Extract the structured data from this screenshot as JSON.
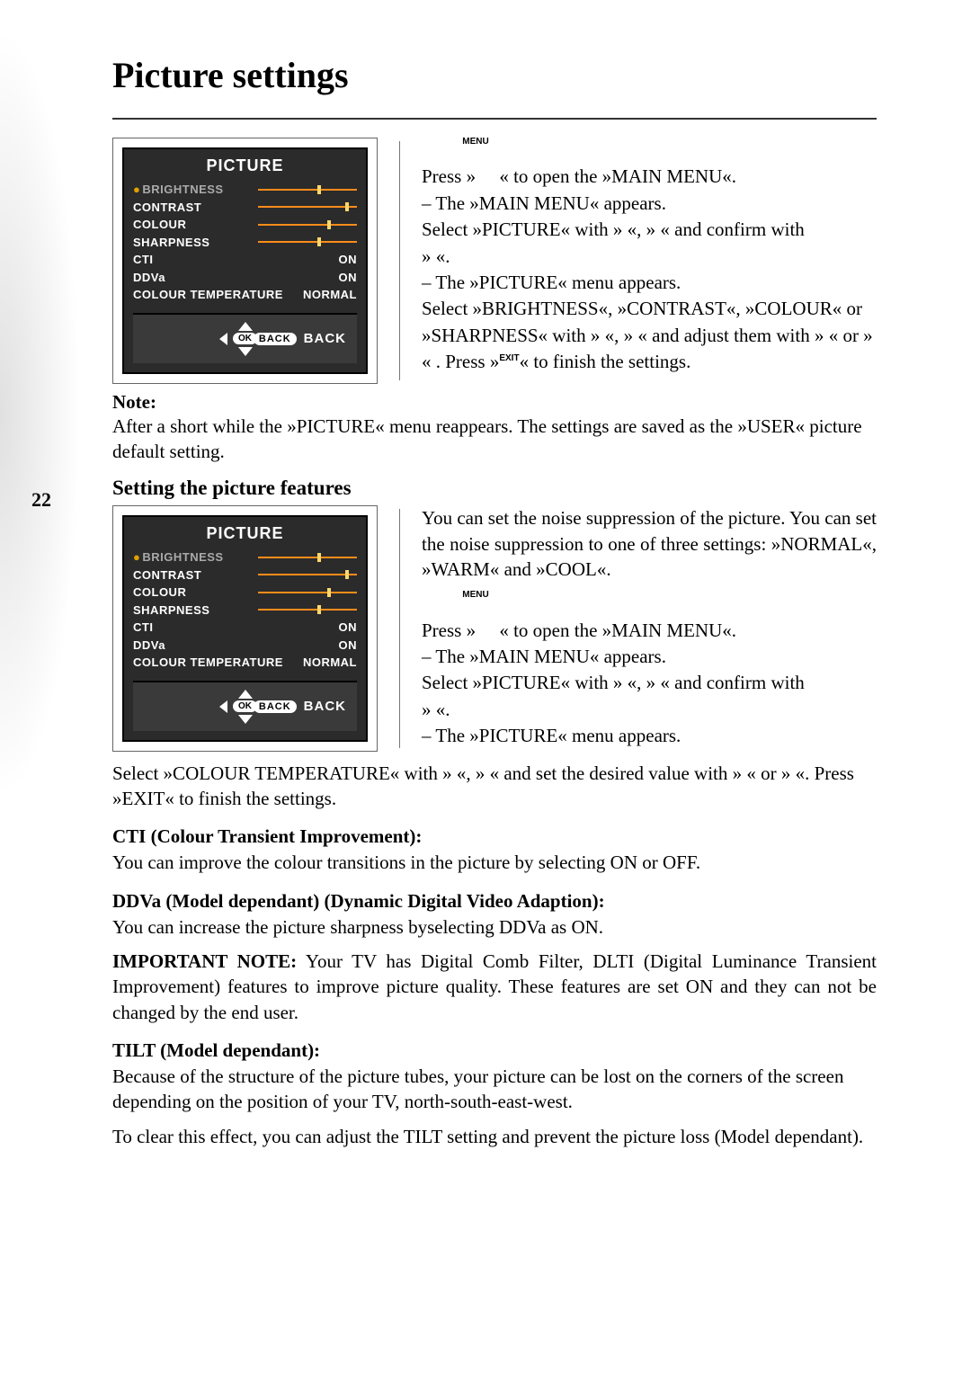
{
  "page": {
    "number": "22",
    "title": "Picture settings"
  },
  "osd": {
    "title": "PICTURE",
    "items": [
      {
        "label": "BRIGHTNESS",
        "type": "slider",
        "knob": 60,
        "highlight": true
      },
      {
        "label": "CONTRAST",
        "type": "slider",
        "knob": 88
      },
      {
        "label": "COLOUR",
        "type": "slider",
        "knob": 70
      },
      {
        "label": "SHARPNESS",
        "type": "slider",
        "knob": 60
      },
      {
        "label": "CTI",
        "type": "value",
        "value": "ON"
      },
      {
        "label": "DDVa",
        "type": "value",
        "value": "ON"
      },
      {
        "label": "COLOUR TEMPERATURE",
        "type": "value",
        "value": "NORMAL"
      }
    ],
    "ok": "OK",
    "back_pill": "BACK",
    "back_label": "BACK"
  },
  "labels": {
    "menu": "MENU",
    "exit": "EXIT"
  },
  "steps1": {
    "l1a": "Press »",
    "l1b": "« to open the »MAIN MENU«.",
    "l2": "– The »MAIN MENU« appears.",
    "l3": "Select »PICTURE« with »      «, »       « and confirm with",
    "l4": "»     «.",
    "l5": "– The »PICTURE« menu appears.",
    "l6": "Select »BRIGHTNESS«, »CONTRAST«, »COLOUR« or »SHARPNESS« with »      «, »       « and adjust them with »    « or »    « . Press »",
    "l6b": "« to finish the settings."
  },
  "note_head": "Note:",
  "note_body": "After a short while the »PICTURE« menu reappears. The settings are saved as the »USER« picture default setting.",
  "subheading": "Setting the picture features",
  "features_intro": {
    "p1": "You can set the noise suppression of the picture. You can set the noise suppression to one of three settings: »NORMAL«, »WARM« and »COOL«."
  },
  "steps2": {
    "l1a": "Press »",
    "l1b": "« to open the »MAIN MENU«.",
    "l2": "– The »MAIN MENU« appears.",
    "l3": "Select »PICTURE« with »      «, »       « and confirm with",
    "l4": "»     «.",
    "l5": "– The »PICTURE« menu appears."
  },
  "colourtemp": {
    "l1": "Select  »COLOUR TEMPERATURE« with  »       «,  »       « and  set the  desired value with »    « or »    «.  Press »",
    "l1b": "« to finish the settings."
  },
  "cti_head": "CTI (Colour Transient Improvement):",
  "cti_body": "You can improve the colour transitions in the picture by selecting ON or OFF.",
  "ddva_head": "DDVa (Model dependant) (Dynamic Digital Video Adaption):",
  "ddva_body": "You can increase the picture sharpness byselecting DDVa as ON.",
  "important_head": "IMPORTANT NOTE:",
  "important_body": " Your TV has Digital Comb Filter, DLTI (Digital Luminance Transient Improvement) features  to improve picture quality. These features are set ON and they can not be changed by the end user.",
  "tilt_head": "TILT (Model dependant):",
  "tilt_body1": "Because of the structure of the picture tubes, your picture can be lost on the corners of the screen depending on the position of your TV, north-south-east-west.",
  "tilt_body2": "To clear this effect, you can adjust the TILT setting and prevent the picture loss  (Model dependant)."
}
